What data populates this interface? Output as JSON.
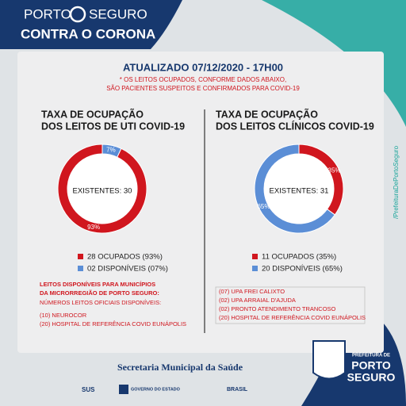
{
  "header": {
    "brand": [
      "PORTO",
      "SEGURO"
    ],
    "campaign": "CONTRA O CORONA"
  },
  "update": "ATUALIZADO 07/12/2020 - 17H00",
  "notes": [
    "* OS LEITOS OCUPADOS, CONFORME DADOS ABAIXO,",
    "SÃO PACIENTES SUSPEITOS E CONFIRMADOS PARA COVID-19"
  ],
  "chart_data": [
    {
      "type": "pie",
      "title": [
        "TAXA DE OCUPAÇÃO",
        "DOS LEITOS DE UTI COVID-19"
      ],
      "center_label": "EXISTENTES: 30",
      "categories": [
        "28 OCUPADOS (93%)",
        "02 DISPONÍVEIS (07%)"
      ],
      "values": [
        93,
        7
      ],
      "value_labels": [
        "93%",
        "7%"
      ],
      "colors": [
        "#d0161e",
        "#5b8ed6"
      ]
    },
    {
      "type": "pie",
      "title": [
        "TAXA DE OCUPAÇÃO",
        "DOS LEITOS CLÍNICOS COVID-19"
      ],
      "center_label": "EXISTENTES: 31",
      "categories": [
        "11 OCUPADOS (35%)",
        "20 DISPONÍVEIS (65%)"
      ],
      "values": [
        35,
        65
      ],
      "value_labels": [
        "35%",
        "65%"
      ],
      "colors": [
        "#d0161e",
        "#5b8ed6"
      ]
    }
  ],
  "left_list": {
    "heading": [
      "LEITOS DISPONÍVEIS PARA MUNICÍPIOS",
      "DA MICRORREGIÃO DE PORTO SEGURO:"
    ],
    "subheading": "NÚMEROS LEITOS OFICIAIS DISPONÍVEIS:",
    "items": [
      "(10) NEUROCOR",
      "(20) HOSPITAL DE REFERÊNCIA COVID EUNÁPOLIS"
    ]
  },
  "right_list": [
    "(07) UPA FREI CALIXTO",
    "(02) UPA ARRAIAL D'AJUDA",
    "(02) PRONTO ATENDIMENTO TRANCOSO",
    "(20) HOSPITAL DE REFERÊNCIA COVID EUNÁPOLIS"
  ],
  "footer": {
    "secretaria": "Secretaria Municipal da Saúde",
    "sus": "SUS",
    "estado": "GOVERNO DO ESTADO",
    "brasil": "BRASIL",
    "logo": [
      "PREFEITURA DE",
      "PORTO",
      "SEGURO"
    ],
    "side": "/PrefeituraDePortoSeguro"
  }
}
